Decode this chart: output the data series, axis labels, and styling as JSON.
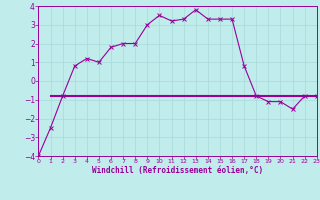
{
  "xlabel": "Windchill (Refroidissement éolien,°C)",
  "ylabel": "",
  "bg_color": "#c0ecec",
  "grid_color": "#a8d8d8",
  "line_color": "#990099",
  "line1_x": [
    0,
    1,
    2,
    3,
    4,
    5,
    6,
    7,
    8,
    9,
    10,
    11,
    12,
    13,
    14,
    15,
    16,
    17,
    18,
    19,
    20,
    21,
    22,
    23
  ],
  "line1_y": [
    -4.0,
    -2.5,
    -0.8,
    0.8,
    1.2,
    1.0,
    1.8,
    2.0,
    2.0,
    3.0,
    3.5,
    3.2,
    3.3,
    3.8,
    3.3,
    3.3,
    3.3,
    0.8,
    -0.8,
    -1.1,
    -1.1,
    -1.5,
    -0.8,
    -0.8
  ],
  "line2_x": [
    1,
    2,
    3,
    4,
    5,
    6,
    7,
    8,
    9,
    10,
    11,
    12,
    13,
    14,
    15,
    16,
    17,
    18,
    19,
    20,
    21,
    22,
    23
  ],
  "line2_y": [
    -0.8,
    -0.8,
    -0.8,
    -0.8,
    -0.8,
    -0.8,
    -0.8,
    -0.8,
    -0.8,
    -0.8,
    -0.8,
    -0.8,
    -0.8,
    -0.8,
    -0.8,
    -0.8,
    -0.8,
    -0.8,
    -0.8,
    -0.8,
    -0.8,
    -0.8,
    -0.8
  ],
  "xlim": [
    0,
    23
  ],
  "ylim": [
    -4,
    4
  ],
  "xticks": [
    0,
    1,
    2,
    3,
    4,
    5,
    6,
    7,
    8,
    9,
    10,
    11,
    12,
    13,
    14,
    15,
    16,
    17,
    18,
    19,
    20,
    21,
    22,
    23
  ],
  "yticks": [
    -4,
    -3,
    -2,
    -1,
    0,
    1,
    2,
    3,
    4
  ],
  "marker_style": "x",
  "line_width": 0.8,
  "marker_size": 2.5
}
